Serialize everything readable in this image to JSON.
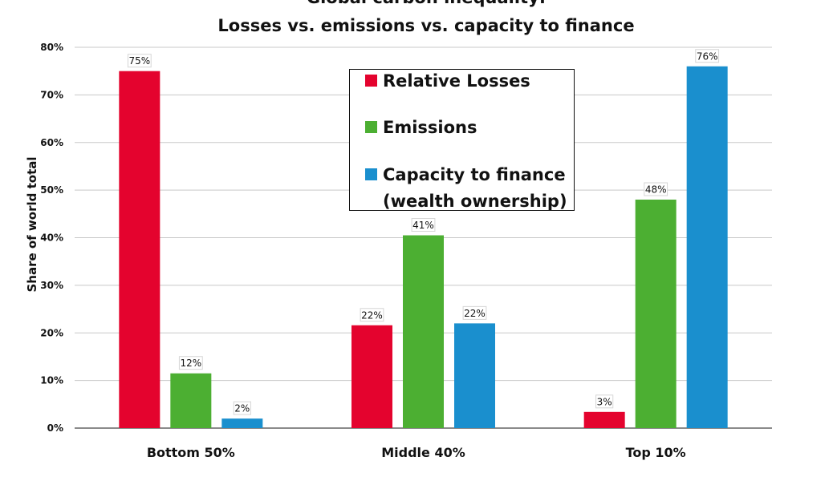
{
  "chart_data": {
    "type": "bar",
    "title": "Global carbon inequality:",
    "subtitle": "Losses vs. emissions vs. capacity to finance",
    "ylabel": "Share of world total",
    "xlabel": "",
    "categories": [
      "Bottom 50%",
      "Middle 40%",
      "Top 10%"
    ],
    "ylim": [
      0,
      80
    ],
    "yticks": [
      0,
      10,
      20,
      30,
      40,
      50,
      60,
      70,
      80
    ],
    "ytick_labels": [
      "0%",
      "10%",
      "20%",
      "30%",
      "40%",
      "50%",
      "60%",
      "70%",
      "80%"
    ],
    "grid": true,
    "legend_position": "top-center",
    "series": [
      {
        "name": "Relative Losses",
        "color": "#e4032e",
        "values": [
          75,
          21.6,
          3.4
        ],
        "labels": [
          "75%",
          "22%",
          "3%"
        ]
      },
      {
        "name": "Emissions",
        "color": "#4caf32",
        "values": [
          11.5,
          40.5,
          48
        ],
        "labels": [
          "12%",
          "41%",
          "48%"
        ]
      },
      {
        "name": "Capacity to finance",
        "name_line2": "(wealth ownership)",
        "color": "#1a8fce",
        "values": [
          2,
          22,
          76
        ],
        "labels": [
          "2%",
          "22%",
          "76%"
        ]
      }
    ]
  }
}
